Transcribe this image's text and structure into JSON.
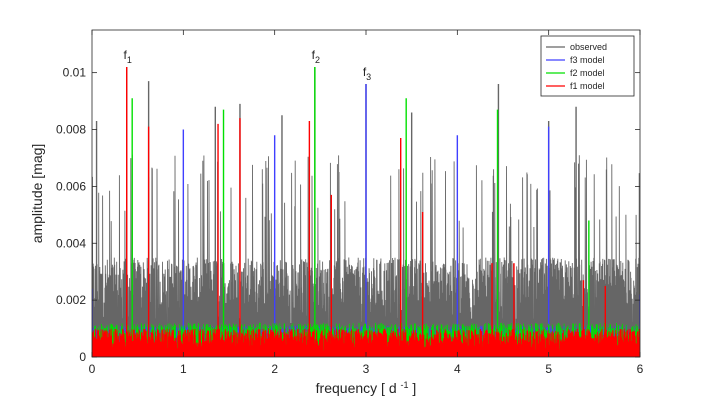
{
  "chart_data": {
    "type": "line",
    "title": "",
    "xlabel": "frequency",
    "xlabel_unit_base": "d",
    "xlabel_unit_exp": "-1",
    "ylabel": "amplitude  [mag]",
    "xlim": [
      0,
      6
    ],
    "ylim": [
      0,
      0.0115
    ],
    "x_ticks": [
      0,
      1,
      2,
      3,
      4,
      5,
      6
    ],
    "x_tick_labels": [
      "0",
      "1",
      "2",
      "3",
      "4",
      "5",
      "6"
    ],
    "y_ticks": [
      0,
      0.002,
      0.004,
      0.006,
      0.008,
      0.01
    ],
    "y_tick_labels": [
      "0",
      "0.002",
      "0.004",
      "0.006",
      "0.008",
      "0.01"
    ],
    "grid": false,
    "legend_position": "top-right",
    "series": [
      {
        "name": "observed",
        "color": "#666666",
        "noise_baseline": 0.0035,
        "peaks": [
          {
            "x": 0.05,
            "y": 0.0083
          },
          {
            "x": 0.38,
            "y": 0.0102
          },
          {
            "x": 0.62,
            "y": 0.0097
          },
          {
            "x": 1.35,
            "y": 0.0088
          },
          {
            "x": 1.62,
            "y": 0.0089
          },
          {
            "x": 2.08,
            "y": 0.0085
          },
          {
            "x": 2.44,
            "y": 0.0102
          },
          {
            "x": 3.0,
            "y": 0.0096
          },
          {
            "x": 3.5,
            "y": 0.0086
          },
          {
            "x": 4.45,
            "y": 0.0096
          },
          {
            "x": 5.0,
            "y": 0.0083
          },
          {
            "x": 5.3,
            "y": 0.0088
          }
        ]
      },
      {
        "name": "f3 model",
        "color": "#4040ff",
        "noise_baseline": 0.0011,
        "peaks": [
          {
            "x": 0.0,
            "y": 0.0024
          },
          {
            "x": 1.0,
            "y": 0.008
          },
          {
            "x": 2.0,
            "y": 0.0078
          },
          {
            "x": 3.0,
            "y": 0.0096
          },
          {
            "x": 4.0,
            "y": 0.0078
          },
          {
            "x": 5.0,
            "y": 0.0081
          },
          {
            "x": 6.0,
            "y": 0.0022
          }
        ]
      },
      {
        "name": "f2 model",
        "color": "#00e000",
        "noise_baseline": 0.0012,
        "peaks": [
          {
            "x": 0.44,
            "y": 0.0091
          },
          {
            "x": 1.44,
            "y": 0.0087
          },
          {
            "x": 2.44,
            "y": 0.0102
          },
          {
            "x": 3.44,
            "y": 0.0091
          },
          {
            "x": 4.44,
            "y": 0.0087
          },
          {
            "x": 5.44,
            "y": 0.0048
          }
        ]
      },
      {
        "name": "f1 model",
        "color": "#ff0000",
        "noise_baseline": 0.001,
        "peaks": [
          {
            "x": 0.38,
            "y": 0.0102
          },
          {
            "x": 0.62,
            "y": 0.0081
          },
          {
            "x": 1.38,
            "y": 0.0082
          },
          {
            "x": 1.62,
            "y": 0.0084
          },
          {
            "x": 2.38,
            "y": 0.0083
          },
          {
            "x": 2.62,
            "y": 0.0057
          },
          {
            "x": 3.38,
            "y": 0.0077
          },
          {
            "x": 3.62,
            "y": 0.0051
          },
          {
            "x": 4.38,
            "y": 0.0033
          },
          {
            "x": 4.62,
            "y": 0.0033
          },
          {
            "x": 5.38,
            "y": 0.0027
          },
          {
            "x": 5.62,
            "y": 0.0025
          }
        ]
      }
    ],
    "annotations": [
      {
        "label": "f",
        "sub": "1",
        "x": 0.38,
        "y": 0.0102
      },
      {
        "label": "f",
        "sub": "2",
        "x": 2.44,
        "y": 0.0102
      },
      {
        "label": "f",
        "sub": "3",
        "x": 3.0,
        "y": 0.0096
      }
    ]
  }
}
